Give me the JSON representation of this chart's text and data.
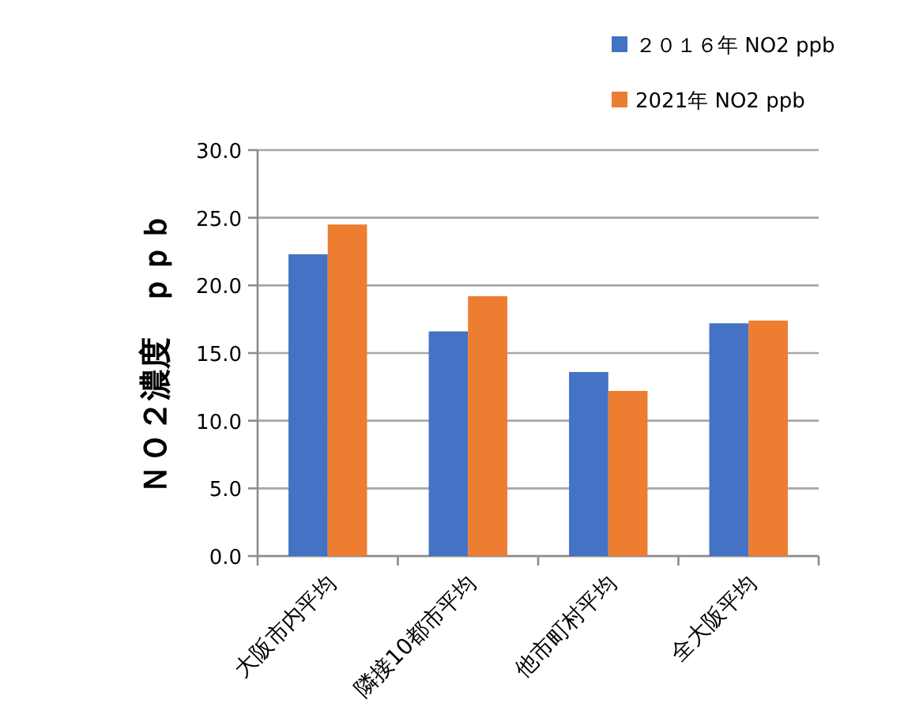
{
  "chart_data": {
    "type": "bar",
    "ylabel": "ＮＯ２濃度　ｐｐｂ",
    "categories": [
      "大阪市内平均",
      "隣接10都市平均",
      "他市町村平均",
      "全大阪平均"
    ],
    "series": [
      {
        "name": "２０１６年 NO2 ppb",
        "color": "#4472c4",
        "values": [
          22.3,
          16.6,
          13.6,
          17.2
        ]
      },
      {
        "name": "2021年 NO2 ppb",
        "color": "#ed7d31",
        "values": [
          24.5,
          19.2,
          12.2,
          17.4
        ]
      }
    ],
    "ylim": [
      0,
      30
    ],
    "yticks": [
      {
        "value": 0,
        "label": "0.0"
      },
      {
        "value": 5,
        "label": "5.0"
      },
      {
        "value": 10,
        "label": "10.0"
      },
      {
        "value": 15,
        "label": "15.0"
      },
      {
        "value": 20,
        "label": "20.0"
      },
      {
        "value": 25,
        "label": "25.0"
      },
      {
        "value": 30,
        "label": "30.0"
      }
    ],
    "grid": "y",
    "legend": "top right"
  }
}
